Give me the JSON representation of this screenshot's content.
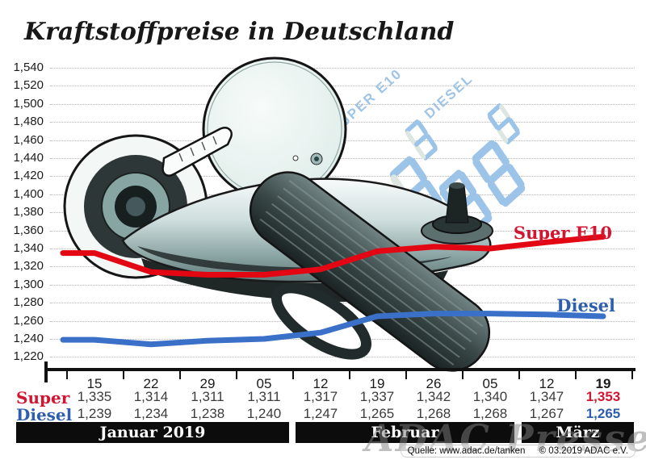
{
  "title": "Kraftstoffpreise in Deutschland",
  "colors": {
    "super_line": "#e30613",
    "super_label": "#d21531",
    "diesel_line": "#3a70c8",
    "diesel_label": "#2d5fae",
    "display_on": "#9cc3e8",
    "display_off": "#dde6e1",
    "band_bg": "#0c0c0c"
  },
  "chart_data": {
    "type": "line",
    "title": "Kraftstoffpreise in Deutschland",
    "y_tick_labels": [
      "1,540",
      "1,520",
      "1,500",
      "1,480",
      "1,460",
      "1,440",
      "1,420",
      "1,400",
      "1,380",
      "1,360",
      "1,340",
      "1,320",
      "1,300",
      "1,280",
      "1,260",
      "1,240",
      "1,220"
    ],
    "ylim": [
      1.22,
      1.54
    ],
    "y_step": 0.02,
    "x_tick_labels": [
      "15",
      "22",
      "29",
      "05",
      "12",
      "19",
      "26",
      "05",
      "12",
      "19"
    ],
    "months": [
      {
        "label": "Januar 2019"
      },
      {
        "label": "Februar"
      },
      {
        "label": "März"
      }
    ],
    "grid": "dotted horizontal",
    "legend_position": "line-end labels right",
    "series": [
      {
        "name": "Super E10",
        "color": "#e30613",
        "values": [
          1.335,
          1.314,
          1.311,
          1.311,
          1.317,
          1.337,
          1.342,
          1.34,
          1.347,
          1.353
        ]
      },
      {
        "name": "Diesel",
        "color": "#3a70c8",
        "values": [
          1.239,
          1.234,
          1.238,
          1.24,
          1.247,
          1.265,
          1.268,
          1.268,
          1.267,
          1.265
        ]
      }
    ]
  },
  "table": {
    "rows": [
      {
        "label": "Super",
        "color": "#d21531",
        "values": [
          "1,335",
          "1,314",
          "1,311",
          "1,311",
          "1,317",
          "1,337",
          "1,342",
          "1,340",
          "1,347",
          "1,353"
        ]
      },
      {
        "label": "Diesel",
        "color": "#2d5fae",
        "values": [
          "1,239",
          "1,234",
          "1,238",
          "1,240",
          "1,247",
          "1,265",
          "1,268",
          "1,268",
          "1,267",
          "1,265"
        ]
      }
    ]
  },
  "background_displays": [
    {
      "label": "SUPER E10",
      "digits": [
        "8",
        "8",
        "3"
      ],
      "digit_states": [
        "ghost",
        "on",
        "on"
      ],
      "small_digit": "3"
    },
    {
      "label": "DIESEL",
      "digits": [
        "8",
        "8",
        "8"
      ],
      "digit_states": [
        "ghost",
        "on",
        "on"
      ],
      "small_digit": "5"
    }
  ],
  "watermark": "ADAC Presse",
  "source": {
    "quelle": "Quelle: www.adac.de/tanken",
    "copyright": "© 03.2019 ADAC e.V."
  }
}
